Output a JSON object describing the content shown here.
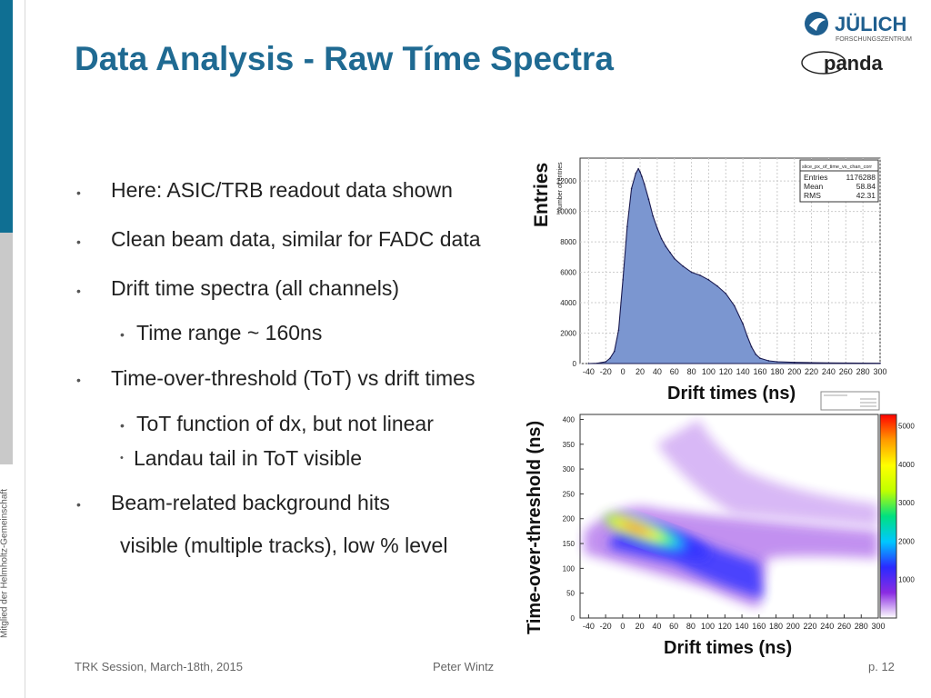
{
  "title": "Data Analysis - Raw Tíme Spectra",
  "side_text": "Mitglied der Helmholtz-Gemeinschaft",
  "logo": {
    "julich_main": "JÜLICH",
    "julich_sub": "FORSCHUNGSZENTRUM",
    "panda": "panda"
  },
  "bullets": [
    "Here: ASIC/TRB readout data shown",
    "Clean beam data, similar for FADC data",
    "Drift time spectra (all channels)",
    "Time range  ~ 160ns",
    "Time-over-threshold (ToT) vs drift times",
    "ToT function of dx, but not linear",
    "Landau tail in ToT visible",
    "Beam-related background hits",
    "visible (multiple tracks), low % level"
  ],
  "footer": {
    "left": "TRK Session, March-18th, 2015",
    "center": "Peter Wintz",
    "right": "p. 12"
  },
  "colors": {
    "accent": "#1f6a92",
    "histogram_fill": "#7b96d0",
    "histogram_line": "#1a1a50"
  },
  "chart_data": [
    {
      "type": "area",
      "ylabel": "Entries",
      "xlabel": "Drift times (ns)",
      "inner_ylabel": "Number of entries",
      "xlim": [
        -50,
        300
      ],
      "ylim": [
        0,
        13500
      ],
      "xticks": [
        "-40",
        "-20",
        "0",
        "20",
        "40",
        "60",
        "80",
        "100",
        "120",
        "140",
        "160",
        "180",
        "200",
        "220",
        "240",
        "260",
        "280",
        "300"
      ],
      "yticks": [
        "0",
        "2000",
        "4000",
        "6000",
        "8000",
        "10000",
        "12000"
      ],
      "grid": true,
      "stats": {
        "name": "slice_px_of_time_vs_chan_corr",
        "rows": [
          {
            "label": "Entries",
            "value": "1176288"
          },
          {
            "label": "Mean",
            "value": "58.84"
          },
          {
            "label": "RMS",
            "value": "42.31"
          }
        ]
      },
      "x": [
        -40,
        -30,
        -20,
        -15,
        -10,
        -5,
        0,
        5,
        10,
        15,
        18,
        20,
        22,
        25,
        30,
        35,
        40,
        45,
        50,
        55,
        60,
        70,
        80,
        90,
        100,
        110,
        120,
        130,
        140,
        145,
        150,
        155,
        160,
        170,
        180,
        200,
        220,
        240,
        260,
        280,
        300
      ],
      "y": [
        0,
        20,
        120,
        350,
        800,
        2200,
        5500,
        9000,
        11500,
        12500,
        12800,
        12600,
        12300,
        11800,
        10800,
        9700,
        8900,
        8200,
        7700,
        7300,
        6900,
        6400,
        6000,
        5800,
        5500,
        5100,
        4600,
        3800,
        2600,
        1800,
        1100,
        600,
        350,
        180,
        120,
        80,
        60,
        45,
        35,
        25,
        20
      ]
    },
    {
      "type": "heatmap",
      "ylabel": "Time-over-threshold (ns)",
      "xlabel": "Drift times (ns)",
      "xlim": [
        -50,
        300
      ],
      "ylim": [
        0,
        410
      ],
      "xticks": [
        "-40",
        "-20",
        "0",
        "20",
        "40",
        "60",
        "80",
        "100",
        "120",
        "140",
        "160",
        "180",
        "200",
        "220",
        "240",
        "260",
        "280",
        "300"
      ],
      "yticks": [
        "0",
        "50",
        "100",
        "150",
        "200",
        "250",
        "300",
        "350",
        "400"
      ],
      "zticks": [
        "1000",
        "2000",
        "3000",
        "4000",
        "5000"
      ],
      "zlim": [
        0,
        5300
      ],
      "colorscale": [
        "#ffffff",
        "#8a2be2",
        "#2a2aff",
        "#00c8ff",
        "#00e080",
        "#c0ff00",
        "#ffff00",
        "#ff9900",
        "#ff0000"
      ],
      "core_band": [
        [
          10,
          180
        ],
        [
          40,
          160
        ],
        [
          80,
          135
        ],
        [
          100,
          120
        ],
        [
          130,
          95
        ]
      ]
    }
  ]
}
